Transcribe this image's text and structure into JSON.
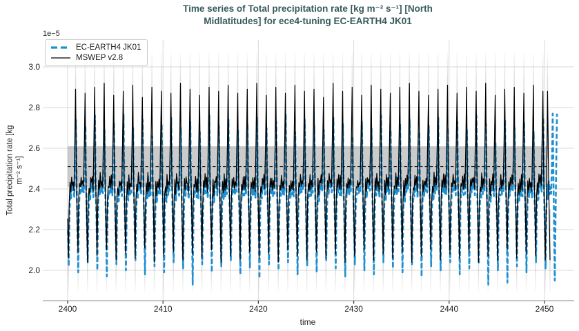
{
  "header": {
    "title_line1": "Time series of Total precipitation rate [kg m⁻² s⁻¹] [North",
    "title_line2": "Midlatitudes] for ece4-tuning EC-EARTH4 JK01"
  },
  "axes": {
    "xlabel": "time",
    "ylabel_line1": "Total precipitation rate [kg",
    "ylabel_line2": "m⁻² s⁻¹]",
    "offset_label": "1e−5"
  },
  "chart_data": {
    "type": "line",
    "title": "Time series of Total precipitation rate [kg m⁻² s⁻¹] [North Midlatitudes] for ece4-tuning EC-EARTH4 JK01",
    "xlabel": "time",
    "ylabel": "Total precipitation rate [kg m⁻² s⁻¹]",
    "y_offset_factor": "1e−5",
    "xlim": [
      2397.4,
      2453.0
    ],
    "ylim_1e5": [
      1.85,
      3.13
    ],
    "xticks": [
      2400,
      2410,
      2420,
      2430,
      2440,
      2450
    ],
    "yticks_1e5": [
      3.0,
      2.8,
      2.6,
      2.4,
      2.2,
      2.0
    ],
    "grid": true,
    "legend_position": "upper left",
    "year_start": 2400,
    "points_per_year": 12,
    "series": [
      {
        "name": "EC-EARTH4 JK01",
        "color": "#1e90d2",
        "line_style": "dashed",
        "line_width": 2.6,
        "x_offset_years": 0.03,
        "full_years": 51,
        "peak_month_index": 10,
        "trough_month_index": 1,
        "monthly_climatology_1e5": [
          2.22,
          1.99,
          2.3,
          2.4,
          2.36,
          2.44,
          2.38,
          2.42,
          2.37,
          2.52,
          2.74,
          2.4
        ],
        "annual_peaks_1e5": [
          2.74,
          2.71,
          2.76,
          2.69,
          2.73,
          2.77,
          2.7,
          2.74,
          2.66,
          2.72,
          2.75,
          2.7,
          2.73,
          2.68,
          2.76,
          2.71,
          2.74,
          2.69,
          2.72,
          2.75,
          2.7,
          2.73,
          2.77,
          2.68,
          2.74,
          2.71,
          2.69,
          2.75,
          2.72,
          2.66,
          2.73,
          2.7,
          2.76,
          2.69,
          2.72,
          2.74,
          2.68,
          2.71,
          2.75,
          2.7,
          2.73,
          2.69,
          2.76,
          2.72,
          2.63,
          2.74,
          2.7,
          2.73,
          2.68,
          2.75,
          2.77
        ],
        "annual_troughs_1e5": [
          2.02,
          1.99,
          2.04,
          2.0,
          1.97,
          2.03,
          2.0,
          2.05,
          1.98,
          2.02,
          1.99,
          2.04,
          2.01,
          1.93,
          2.03,
          1.99,
          2.02,
          2.05,
          1.98,
          2.01,
          1.96,
          2.03,
          2.0,
          2.04,
          1.98,
          2.02,
          1.99,
          2.05,
          2.01,
          1.97,
          2.03,
          2.0,
          1.98,
          2.04,
          2.01,
          1.99,
          2.03,
          1.97,
          2.02,
          2.0,
          2.04,
          1.98,
          2.01,
          2.03,
          1.93,
          2.0,
          1.94,
          2.02,
          1.99,
          2.04,
          2.01
        ],
        "tail_points": [
          [
            2451.05,
            1.95
          ],
          [
            2451.17,
            2.42
          ],
          [
            2451.28,
            2.77
          ]
        ]
      },
      {
        "name": "MSWEP v2.8",
        "color": "#000000",
        "line_style": "solid",
        "line_width": 1.25,
        "x_offset_years": 0,
        "full_years": 50,
        "peak_month_index": 10,
        "trough_month_index": 1,
        "monthly_climatology_1e5": [
          2.28,
          2.06,
          2.35,
          2.43,
          2.39,
          2.46,
          2.41,
          2.45,
          2.4,
          2.62,
          2.89,
          2.48
        ],
        "annual_peaks_1e5": [
          2.89,
          2.87,
          2.9,
          2.92,
          2.86,
          2.88,
          2.91,
          2.85,
          2.9,
          2.88,
          2.87,
          2.92,
          2.89,
          2.86,
          2.9,
          2.88,
          2.91,
          2.87,
          2.89,
          2.92,
          2.86,
          2.9,
          2.87,
          2.91,
          2.88,
          2.89,
          2.85,
          2.92,
          2.88,
          2.9,
          2.86,
          2.91,
          2.89,
          2.87,
          2.9,
          2.92,
          2.88,
          2.86,
          2.89,
          2.91,
          2.87,
          2.9,
          2.88,
          2.92,
          2.86,
          2.89,
          2.9,
          2.87,
          2.91,
          2.88
        ],
        "annual_troughs_1e5": [
          2.06,
          2.09,
          2.04,
          2.07,
          2.1,
          2.05,
          2.08,
          2.06,
          2.11,
          2.04,
          2.07,
          2.09,
          2.05,
          2.08,
          2.06,
          2.1,
          2.04,
          2.07,
          2.05,
          2.09,
          2.06,
          2.08,
          2.04,
          2.1,
          2.07,
          2.05,
          2.09,
          2.06,
          2.08,
          2.04,
          2.07,
          2.1,
          2.05,
          2.08,
          2.06,
          2.09,
          2.04,
          2.07,
          2.1,
          2.05,
          2.08,
          2.06,
          2.09,
          2.04,
          2.07,
          2.05,
          2.1,
          2.06,
          2.08,
          2.07
        ],
        "tail_points": [
          [
            2450.0,
            2.28
          ],
          [
            2450.08,
            2.05
          ],
          [
            2450.2,
            2.35
          ],
          [
            2450.32,
            2.88
          ],
          [
            2450.45,
            2.4
          ],
          [
            2450.58,
            2.05
          ]
        ]
      }
    ],
    "reference_band": {
      "low_1e5": 2.41,
      "high_1e5": 2.61,
      "mean_1e5": 2.51,
      "x_from": 2400,
      "x_to": 2450.35,
      "band_color": "rgba(130,130,130,0.42)",
      "mean_line_color": "#1a1a1a",
      "mean_line_style": "dashed"
    },
    "whiskers": {
      "color": "#999999",
      "peak_span_1e5": [
        2.55,
        3.07
      ],
      "trough_span_1e5": [
        1.895,
        2.3
      ],
      "peak_phase": 0.833,
      "trough_phase": 0.083,
      "whisker_years": 50,
      "extra_peak_positions": [
        2450.32
      ],
      "extra_trough_positions": [
        2450.083,
        2450.58
      ]
    },
    "style": {
      "grid_color": "#d9d9d9",
      "spine_color": "#c4c4c4",
      "title_color": "#37595c",
      "tick_label_color": "#1f1f1f"
    }
  }
}
